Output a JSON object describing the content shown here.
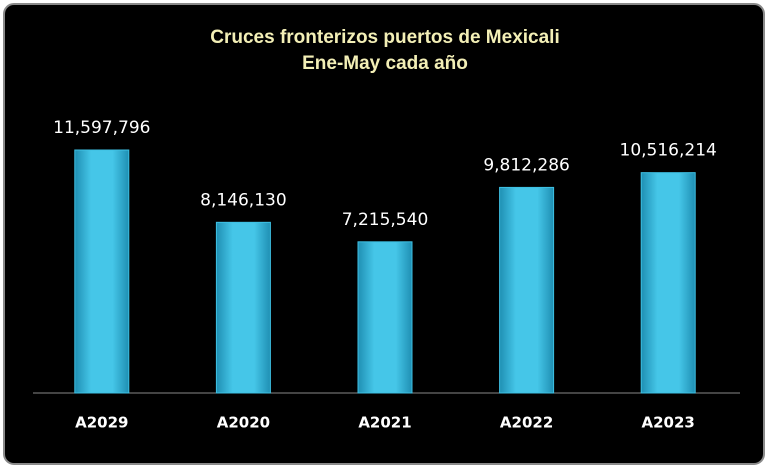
{
  "chart_data": {
    "type": "bar",
    "title": "Cruces fronterizos puertos de Mexicali",
    "subtitle": "Ene-May cada año",
    "categories": [
      "A2029",
      "A2020",
      "A2021",
      "A2022",
      "A2023"
    ],
    "values": [
      11597796,
      8146130,
      7215540,
      9812286,
      10516214
    ],
    "value_labels": [
      "11,597,796",
      "8,146,130",
      "7,215,540",
      "9,812,286",
      "10,516,214"
    ],
    "color": "#3ec1e4"
  }
}
